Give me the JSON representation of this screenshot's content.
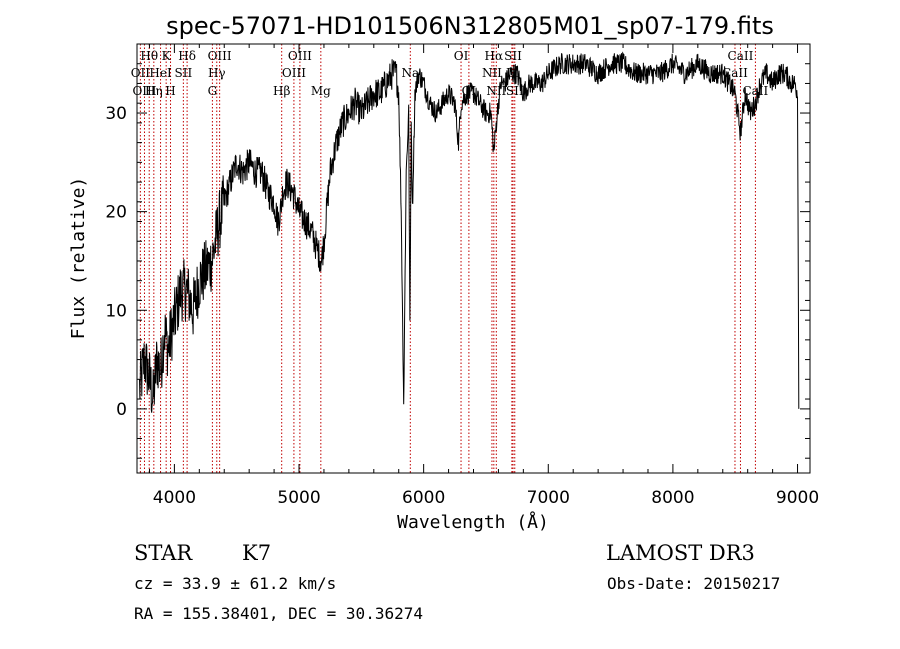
{
  "chart_data": {
    "type": "line",
    "title": "spec-57071-HD101506N312805M01_sp07-179.fits",
    "xlabel": "Wavelength (Å)",
    "ylabel": "Flux (relative)",
    "xlim": [
      3700,
      9100
    ],
    "ylim": [
      -6.5,
      37
    ],
    "xticks": [
      "4000",
      "5000",
      "6000",
      "7000",
      "8000",
      "9000"
    ],
    "xtick_values": [
      4000,
      5000,
      6000,
      7000,
      8000,
      9000
    ],
    "yticks": [
      "0",
      "10",
      "20",
      "30"
    ],
    "ytick_values": [
      0,
      10,
      20,
      30
    ],
    "grid": false,
    "series": [
      {
        "x": [
          3720,
          3760,
          3800,
          3830,
          3860,
          3890,
          3920,
          3950,
          3980,
          4000,
          4050,
          4100,
          4150,
          4200,
          4250,
          4300,
          4330,
          4360,
          4400,
          4450,
          4500,
          4550,
          4600,
          4650,
          4700,
          4750,
          4800,
          4830,
          4850,
          4870,
          4900,
          4950,
          5000,
          5050,
          5100,
          5150,
          5180,
          5200,
          5250,
          5300,
          5350,
          5400,
          5450,
          5500,
          5550,
          5600,
          5650,
          5700,
          5750,
          5780,
          5800,
          5820,
          5840,
          5860,
          5880,
          5890,
          5900,
          5910,
          5930,
          5960,
          6000,
          6050,
          6100,
          6150,
          6200,
          6250,
          6280,
          6300,
          6350,
          6400,
          6450,
          6500,
          6540,
          6563,
          6590,
          6620,
          6650,
          6700,
          6750,
          6800,
          6850,
          6900,
          6950,
          7000,
          7100,
          7200,
          7300,
          7400,
          7500,
          7600,
          7700,
          7800,
          7900,
          8000,
          8100,
          8200,
          8300,
          8400,
          8450,
          8498,
          8542,
          8580,
          8620,
          8662,
          8700,
          8750,
          8800,
          8850,
          8900,
          8950,
          8980,
          9000,
          9010
        ],
        "y": [
          2,
          5,
          3,
          1,
          5,
          4,
          8,
          6,
          8,
          9,
          12,
          12,
          10,
          13,
          14,
          15,
          17,
          19,
          21,
          23,
          25,
          24,
          25,
          24,
          24,
          22,
          21,
          19,
          20,
          22,
          23,
          22,
          20,
          19,
          18,
          16,
          15,
          17,
          24,
          27,
          29,
          30,
          31,
          30,
          31,
          32,
          32,
          33,
          34,
          34,
          32,
          20,
          0.5,
          24,
          30,
          8,
          30,
          20,
          32,
          34,
          33,
          31,
          30,
          31,
          32,
          31,
          27,
          31,
          32,
          32,
          31,
          30,
          30,
          26,
          30,
          33,
          33,
          34,
          34,
          32,
          33,
          33,
          33,
          34,
          35,
          35,
          35,
          34,
          35,
          35,
          34,
          34,
          34,
          35,
          34,
          35,
          34,
          34,
          33,
          32,
          28,
          32,
          30,
          31,
          33,
          34,
          33,
          34,
          34,
          33,
          33,
          32,
          0
        ]
      }
    ],
    "lines": [
      {
        "label": "Hθ",
        "x": 3798,
        "row": 0
      },
      {
        "label": "OII",
        "x": 3727,
        "row": 1
      },
      {
        "label": "OIII",
        "x": 3760,
        "row": 2
      },
      {
        "label": "K",
        "x": 3934,
        "row": 0
      },
      {
        "label": "HeI",
        "x": 3889,
        "row": 1
      },
      {
        "label": "Hη",
        "x": 3835,
        "row": 2
      },
      {
        "label": "Hδ",
        "x": 4102,
        "row": 0
      },
      {
        "label": "SII",
        "x": 4072,
        "row": 1
      },
      {
        "label": "H",
        "x": 3969,
        "row": 2
      },
      {
        "label": "OIII",
        "x": 4363,
        "row": 0
      },
      {
        "label": "Hγ",
        "x": 4340,
        "row": 1
      },
      {
        "label": "G",
        "x": 4305,
        "row": 2
      },
      {
        "label": "OIII",
        "x": 5007,
        "row": 0
      },
      {
        "label": "OIII",
        "x": 4959,
        "row": 1
      },
      {
        "label": "Hβ",
        "x": 4861,
        "row": 2
      },
      {
        "label": "Mg",
        "x": 5175,
        "row": 2
      },
      {
        "label": "Na",
        "x": 5893,
        "row": 1
      },
      {
        "label": "OI",
        "x": 6300,
        "row": 0
      },
      {
        "label": "OI",
        "x": 6363,
        "row": 2
      },
      {
        "label": "Hα",
        "x": 6563,
        "row": 0
      },
      {
        "label": "SII",
        "x": 6717,
        "row": 0
      },
      {
        "label": "NII",
        "x": 6548,
        "row": 1
      },
      {
        "label": "NII",
        "x": 6583,
        "row": 2
      },
      {
        "label": "Li",
        "x": 6708,
        "row": 1
      },
      {
        "label": "SII",
        "x": 6731,
        "row": 2
      },
      {
        "label": "CaII",
        "x": 8542,
        "row": 0
      },
      {
        "label": "CaII",
        "x": 8498,
        "row": 1
      },
      {
        "label": "CaII",
        "x": 8662,
        "row": 2
      }
    ]
  },
  "info": {
    "object_class": "STAR",
    "subclass": "K7",
    "survey": "LAMOST DR3",
    "cz": "cz = 33.9 ± 61.2 km/s",
    "obs_date": "Obs-Date: 20150217",
    "coords": "RA = 155.38401, DEC =  30.36274"
  },
  "colors": {
    "spectrum": "#000000",
    "line_markers": "#c00000"
  }
}
